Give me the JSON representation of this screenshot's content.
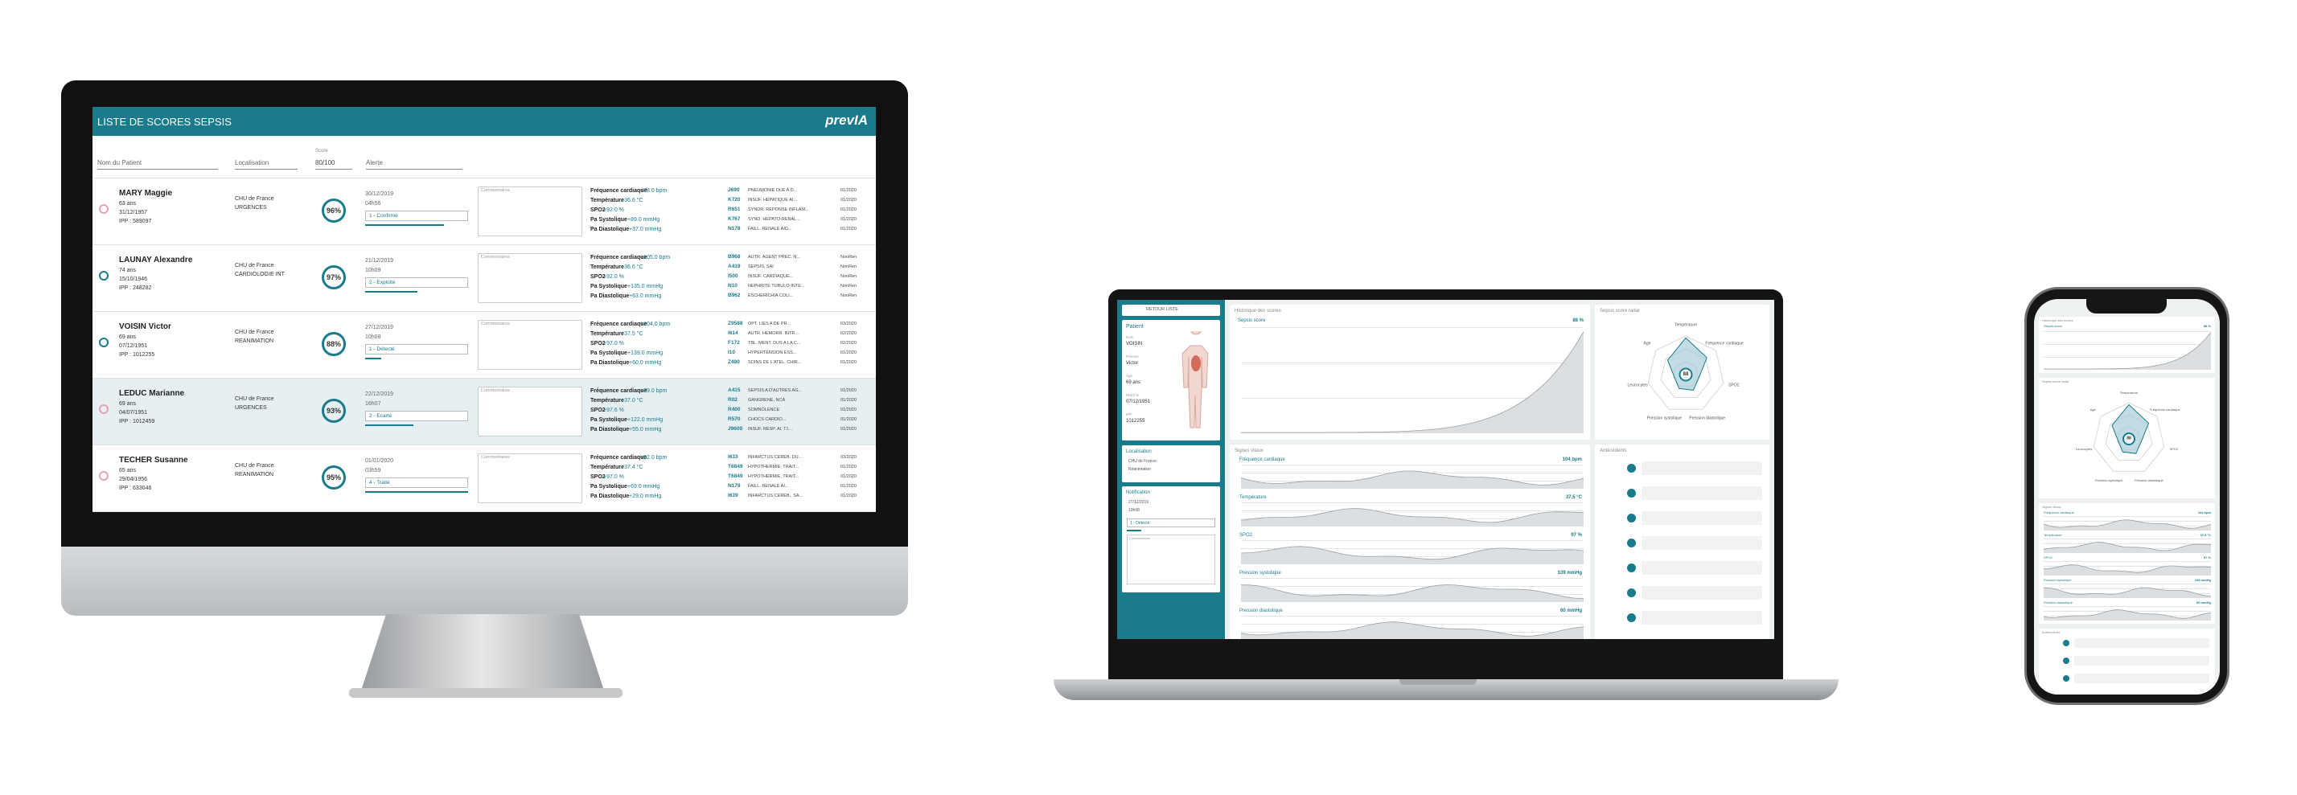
{
  "desktop": {
    "title": "LISTE DE SCORES SEPSIS",
    "logo": "prevIA",
    "filters": {
      "patient": "Nom du Patient",
      "location": "Localisation",
      "score_label": "Score",
      "score": "80/100",
      "alert": "Alerte"
    },
    "comment_label": "Commentaires",
    "patients": [
      {
        "name": "MARY Maggie",
        "age": "63 ans",
        "dob": "31/12/1957",
        "ipp": "IPP : 589097",
        "hospital": "CHU de France",
        "service": "URGENCES",
        "score": "96%",
        "date": "30/12/2019",
        "time": "04h56",
        "status": "1 - Confirmé",
        "vitals": [
          {
            "label": "Fréquence cardiaque",
            "value": "+78.0 bpm"
          },
          {
            "label": "Température",
            "value": "+36.6 °C"
          },
          {
            "label": "SPO2",
            "value": "+92.0 %"
          },
          {
            "label": "Pa Systolique",
            "value": "+89.0 mmHg"
          },
          {
            "label": "Pa Diastolique",
            "value": "+37.0 mmHg"
          }
        ],
        "diagnoses": [
          {
            "code": "J690",
            "text": "PNEUMONIE DUE A D...",
            "date": "01/2020"
          },
          {
            "code": "K720",
            "text": "INSUF. HEPATIQUE AI...",
            "date": "01/2020"
          },
          {
            "code": "R651",
            "text": "SYNDR. REPONSE INFLAM...",
            "date": "01/2020"
          },
          {
            "code": "K767",
            "text": "SYND. HEPATO-RENAL...",
            "date": "01/2020"
          },
          {
            "code": "N178",
            "text": "FAILL. RENALE AIG...",
            "date": "01/2020"
          }
        ]
      },
      {
        "name": "LAUNAY Alexandre",
        "age": "74 ans",
        "dob": "15/10/1946",
        "ipp": "IPP : 248282",
        "hospital": "CHU de France",
        "service": "CARDIOLOGIE INT",
        "score": "97%",
        "date": "21/12/2019",
        "time": "10h09",
        "status": "2 - Exploité",
        "vitals": [
          {
            "label": "Fréquence cardiaque",
            "value": "+105.0 bpm"
          },
          {
            "label": "Température",
            "value": "+36.6 °C"
          },
          {
            "label": "SPO2",
            "value": "+92.0 %"
          },
          {
            "label": "Pa Systolique",
            "value": "+135.0 mmHg"
          },
          {
            "label": "Pa Diastolique",
            "value": "+63.0 mmHg"
          }
        ],
        "diagnoses": [
          {
            "code": "B968",
            "text": "AUTR. AGENT PREC. N...",
            "date": "NonRen"
          },
          {
            "code": "A419",
            "text": "SEPSIS, SAI",
            "date": "NonRen"
          },
          {
            "code": "I500",
            "text": "INSUF. CARDIAQUE...",
            "date": "NonRen"
          },
          {
            "code": "N10",
            "text": "NEPHRITE TUBULO-INTE...",
            "date": "NonRen"
          },
          {
            "code": "B962",
            "text": "ESCHERICHIA COLI...",
            "date": "NonRen"
          }
        ]
      },
      {
        "name": "VOISIN Victor",
        "age": "69 ans",
        "dob": "07/12/1951",
        "ipp": "IPP : 1012255",
        "hospital": "CHU de France",
        "service": "REANIMATION",
        "score": "88%",
        "date": "27/12/2019",
        "time": "10h08",
        "status": "1 - Détecté",
        "vitals": [
          {
            "label": "Fréquence cardiaque",
            "value": "+104.0 bpm"
          },
          {
            "label": "Température",
            "value": "+37.5 °C"
          },
          {
            "label": "SPO2",
            "value": "+97.0 %"
          },
          {
            "label": "Pa Systolique",
            "value": "+139.0 mmHg"
          },
          {
            "label": "Pa Diastolique",
            "value": "+60.0 mmHg"
          }
        ],
        "diagnoses": [
          {
            "code": "Z9588",
            "text": "OPT. LIES A DE PR...",
            "date": "03/2020"
          },
          {
            "code": "I614",
            "text": "AUTR. HEMORR. INTR...",
            "date": "02/2020"
          },
          {
            "code": "F172",
            "text": "TBL. MENT. DUS A LA C...",
            "date": "02/2020"
          },
          {
            "code": "I10",
            "text": "HYPERTENSION ESS...",
            "date": "01/2020"
          },
          {
            "code": "Z480",
            "text": "SOINS DE L'ATEL. CHIR...",
            "date": "01/2020"
          }
        ]
      },
      {
        "name": "LEDUC Marianne",
        "age": "69 ans",
        "dob": "04/07/1951",
        "ipp": "IPP : 1012459",
        "hospital": "CHU de France",
        "service": "URGENCES",
        "score": "93%",
        "date": "22/12/2019",
        "time": "16h07",
        "status": "2 - Ecarté",
        "vitals": [
          {
            "label": "Fréquence cardiaque",
            "value": "+79.0 bpm"
          },
          {
            "label": "Température",
            "value": "+37.0 °C"
          },
          {
            "label": "SPO2",
            "value": "+97.6 %"
          },
          {
            "label": "Pa Systolique",
            "value": "+122.0 mmHg"
          },
          {
            "label": "Pa Diastolique",
            "value": "+55.0 mmHg"
          }
        ],
        "diagnoses": [
          {
            "code": "A415",
            "text": "SEPSIS A D'AUTRES AG...",
            "date": "01/2020"
          },
          {
            "code": "R02",
            "text": "GANGRENE, NCA",
            "date": "01/2020"
          },
          {
            "code": "R400",
            "text": "SOMNOLENCE",
            "date": "01/2020"
          },
          {
            "code": "R570",
            "text": "CHOCS CARDIO...",
            "date": "01/2020"
          },
          {
            "code": "J9600",
            "text": "INSUF. RESP. AI. T1...",
            "date": "01/2020"
          }
        ]
      },
      {
        "name": "TECHER Susanne",
        "age": "65 ans",
        "dob": "29/04/1956",
        "ipp": "IPP : 633046",
        "hospital": "CHU de France",
        "service": "REANIMATION",
        "score": "95%",
        "date": "01/01/2020",
        "time": "03h59",
        "status": "4 - Traité",
        "vitals": [
          {
            "label": "Fréquence cardiaque",
            "value": "+92.0 bpm"
          },
          {
            "label": "Température",
            "value": "+37.4 °C"
          },
          {
            "label": "SPO2",
            "value": "+97.0 %"
          },
          {
            "label": "Pa Systolique",
            "value": "+69.0 mmHg"
          },
          {
            "label": "Pa Diastolique",
            "value": "+29.0 mmHg"
          }
        ],
        "diagnoses": [
          {
            "code": "I633",
            "text": "INFARCTUS CEREB. DU...",
            "date": "03/2020"
          },
          {
            "code": "T6849",
            "text": "HYPOTHERMIE, TRAIT...",
            "date": "01/2020"
          },
          {
            "code": "T6849",
            "text": "HYPOTHERMIE, TRAIT...",
            "date": "01/2020"
          },
          {
            "code": "N179",
            "text": "FAILL. RENALE AI...",
            "date": "01/2020"
          },
          {
            "code": "I639",
            "text": "INFARCTUS CEREB., SA...",
            "date": "01/2020"
          }
        ]
      }
    ]
  },
  "detail": {
    "back": "RETOUR LISTE",
    "patient": {
      "title": "Patient",
      "fields": [
        {
          "label": "Nom",
          "value": "VOISIN"
        },
        {
          "label": "Prénom",
          "value": "Victor"
        },
        {
          "label": "Âge",
          "value": "69 ans"
        },
        {
          "label": "Né(e) le",
          "value": "07/12/1951"
        },
        {
          "label": "IPP",
          "value": "1012255"
        }
      ]
    },
    "location": {
      "title": "Localisation",
      "items": [
        "CHU de France",
        "Réanimation"
      ]
    },
    "notification": {
      "title": "Notification",
      "items": [
        "27/12/2019",
        "10h08"
      ],
      "status": "1 - Détecté",
      "comment": "Commentaires"
    },
    "history": {
      "title": "Historique des scores",
      "label": "Sepsis score",
      "value": "88 %"
    },
    "radar": {
      "title": "Sepsis score radar",
      "center": "88",
      "axes": [
        "Température",
        "Fréquence cardiaque",
        "SPO2",
        "Pression diastolique",
        "Pression systolique",
        "Leucocytes",
        "Age"
      ]
    },
    "vitals": {
      "title": "Signes vitaux",
      "items": [
        {
          "label": "Fréquence cardiaque",
          "value": "104 bpm"
        },
        {
          "label": "Température",
          "value": "37.5 °C"
        },
        {
          "label": "SPO2",
          "value": "97 %"
        },
        {
          "label": "Pression systolique",
          "value": "139 mmHg"
        },
        {
          "label": "Pression diastolique",
          "value": "60 mmHg"
        }
      ]
    },
    "antecedents": "Antécédents"
  }
}
